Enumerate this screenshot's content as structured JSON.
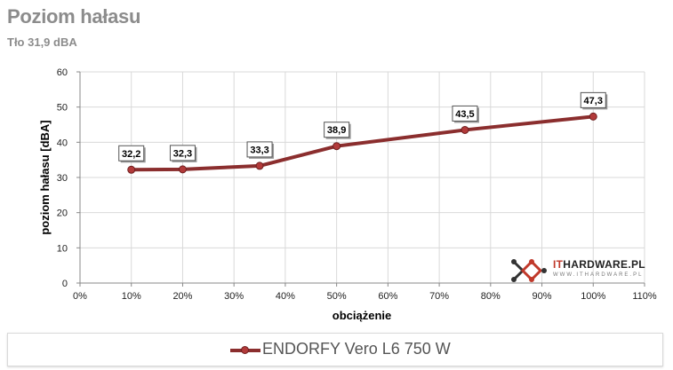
{
  "title": "Poziom hałasu",
  "subtitle": "Tło 31,9 dBA",
  "logo": {
    "brand_prefix": "IT",
    "brand_rest": "HARDWARE.PL",
    "url": "WWW.ITHARDWARE.PL",
    "icon": "ithardware-logo-icon"
  },
  "colors": {
    "series": "#8b2e2e",
    "marker": "#b23a3a",
    "grid": "#d9d9d9"
  },
  "chart_data": {
    "type": "line",
    "xlabel": "obciążenie",
    "ylabel": "poziom hałasu [dBA]",
    "xlim": [
      0,
      110
    ],
    "ylim": [
      0,
      60
    ],
    "x_ticks": [
      "0%",
      "10%",
      "20%",
      "30%",
      "40%",
      "50%",
      "60%",
      "70%",
      "80%",
      "90%",
      "100%",
      "110%"
    ],
    "y_ticks": [
      "0",
      "10",
      "20",
      "30",
      "40",
      "50",
      "60"
    ],
    "grid": true,
    "legend_position": "bottom",
    "series": [
      {
        "name": "ENDORFY Vero L6 750 W",
        "x": [
          10,
          20,
          35,
          50,
          75,
          100
        ],
        "y": [
          32.2,
          32.3,
          33.3,
          38.9,
          43.5,
          47.3
        ],
        "labels": [
          "32,2",
          "32,3",
          "33,3",
          "38,9",
          "43,5",
          "47,3"
        ]
      }
    ]
  }
}
